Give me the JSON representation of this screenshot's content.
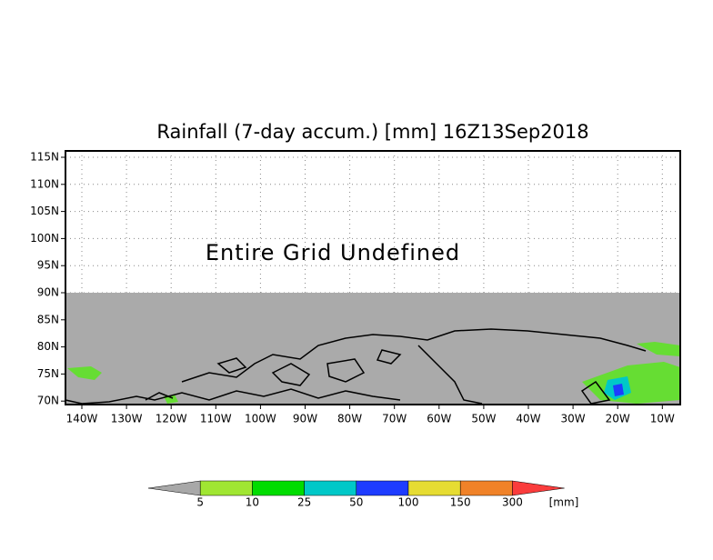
{
  "title": "Rainfall (7-day accum.) [mm] 16Z13Sep2018",
  "annotation": "Entire Grid Undefined",
  "lat_ticks": [
    "115N",
    "110N",
    "105N",
    "100N",
    "95N",
    "90N",
    "85N",
    "80N",
    "75N",
    "70N"
  ],
  "lon_ticks": [
    "140W",
    "130W",
    "120W",
    "110W",
    "100W",
    "90W",
    "80W",
    "70W",
    "60W",
    "50W",
    "40W",
    "30W",
    "20W",
    "10W"
  ],
  "colorbar": {
    "labels": [
      "5",
      "10",
      "25",
      "50",
      "100",
      "150",
      "300"
    ],
    "colors": [
      "#a8a8a8",
      "#a0e632",
      "#00dc00",
      "#00c8c8",
      "#1e3cff",
      "#e6dc32",
      "#f08228",
      "#fa3c3c"
    ],
    "unit": "[mm]"
  }
}
